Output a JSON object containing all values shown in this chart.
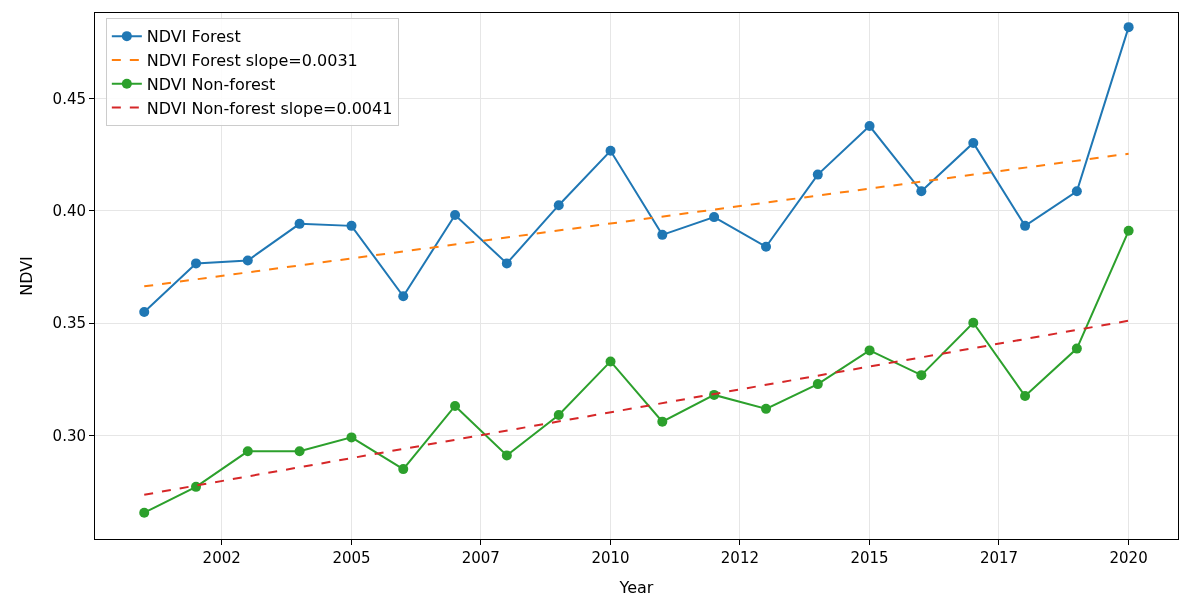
{
  "chart_data": {
    "type": "line",
    "xlabel": "Year",
    "ylabel": "NDVI",
    "xlim": [
      "2000-01-20",
      "2020-12-14"
    ],
    "xticks": [
      {
        "value": "2002-07-01",
        "label": "2002"
      },
      {
        "value": "2005-01-01",
        "label": "2005"
      },
      {
        "value": "2007-07-01",
        "label": "2007"
      },
      {
        "value": "2010-01-01",
        "label": "2010"
      },
      {
        "value": "2012-07-01",
        "label": "2012"
      },
      {
        "value": "2015-01-01",
        "label": "2015"
      },
      {
        "value": "2017-07-01",
        "label": "2017"
      },
      {
        "value": "2020-01-01",
        "label": "2020"
      }
    ],
    "ylim": [
      0.254,
      0.488
    ],
    "yticks": [
      {
        "value": 0.3,
        "label": "0.30"
      },
      0.35,
      {
        "value": 0.4,
        "label": "0.40"
      },
      0.45
    ],
    "x": [
      "2001",
      "2002",
      "2003",
      "2004",
      "2005",
      "2006",
      "2007",
      "2008",
      "2009",
      "2010",
      "2011",
      "2012",
      "2013",
      "2014",
      "2015",
      "2016",
      "2017",
      "2018",
      "2019",
      "2020"
    ],
    "grid": true,
    "legend": "top left",
    "series": [
      {
        "name": "NDVI Forest",
        "color": "#1f77b4",
        "marker": "circle",
        "line_style": "solid",
        "values": [
          0.355,
          0.3766,
          0.3779,
          0.3942,
          0.3933,
          0.362,
          0.3981,
          0.3766,
          0.4025,
          0.4267,
          0.3893,
          0.3972,
          0.384,
          0.4161,
          0.4377,
          0.4087,
          0.4302,
          0.3933,
          0.4087,
          0.4817
        ]
      },
      {
        "name": "NDVI Forest slope=0.0031",
        "color": "#ff7f0e",
        "marker": "none",
        "line_style": "dashed",
        "x": [
          "2001",
          "2020"
        ],
        "values": [
          0.3664,
          0.4254
        ]
      },
      {
        "name": "NDVI Non-forest",
        "color": "#2ca02c",
        "marker": "circle",
        "line_style": "solid",
        "values": [
          0.2657,
          0.2772,
          0.293,
          0.293,
          0.2992,
          0.2851,
          0.3132,
          0.2912,
          0.3092,
          0.333,
          0.3062,
          0.3181,
          0.3119,
          0.3229,
          0.3379,
          0.3269,
          0.3502,
          0.3176,
          0.3387,
          0.3911
        ]
      },
      {
        "name": "NDVI Non-forest slope=0.0041",
        "color": "#d62728",
        "marker": "none",
        "line_style": "dashed",
        "x": [
          "2001",
          "2020"
        ],
        "values": [
          0.2737,
          0.3511
        ]
      }
    ]
  }
}
